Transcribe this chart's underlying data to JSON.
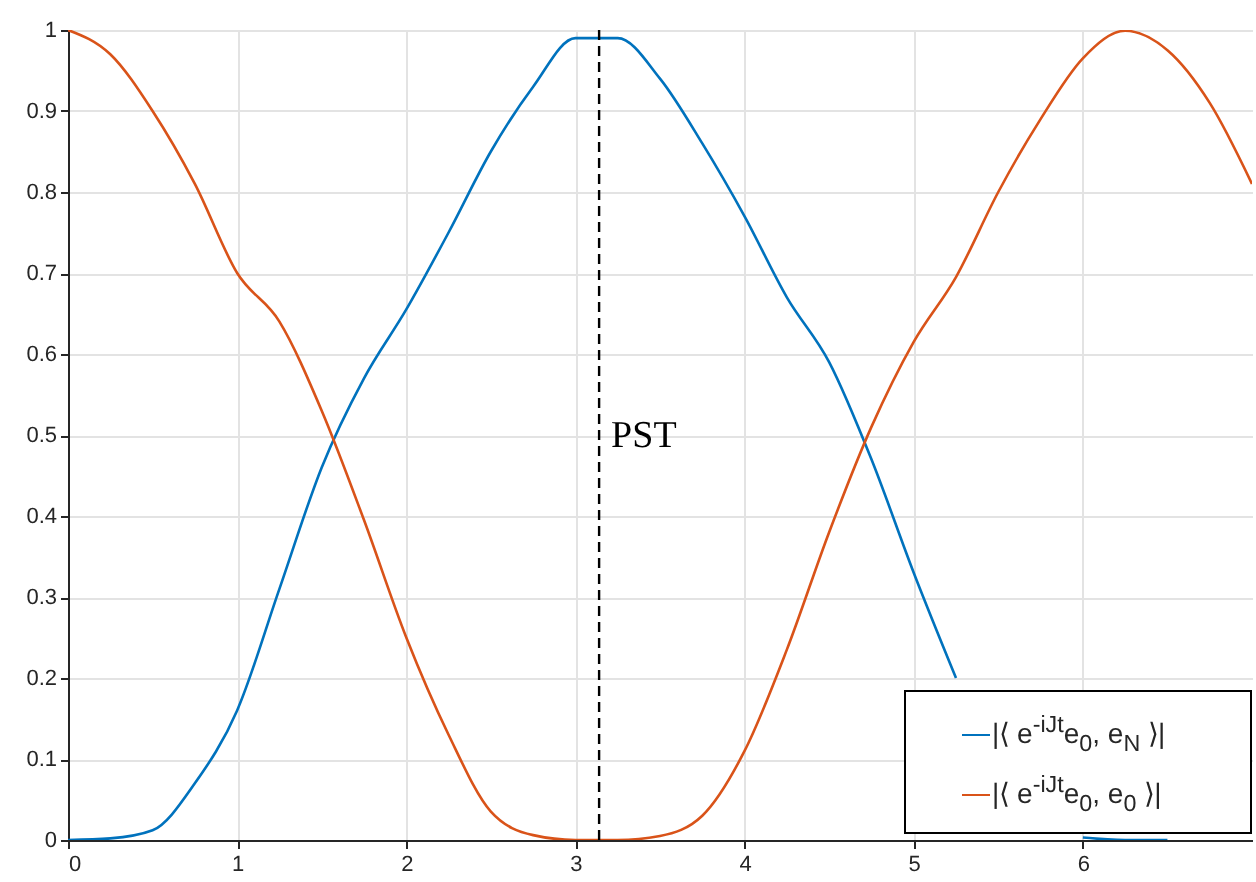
{
  "chart_data": {
    "type": "line",
    "x": [
      0,
      0.25,
      0.5,
      0.75,
      1,
      1.25,
      1.5,
      1.75,
      2,
      2.25,
      2.5,
      2.75,
      3,
      3.25,
      3.5,
      3.75,
      4,
      4.25,
      4.5,
      4.75,
      5,
      5.25,
      5.5,
      5.75,
      6,
      6.25,
      6.5,
      6.75,
      7
    ],
    "series": [
      {
        "name": "|⟨ e$^{-iJt}$e$_{0}$, e$_{N}$ ⟩|",
        "color": "#0072bd",
        "values": [
          0,
          0.002,
          0.012,
          0.07,
          0.16,
          0.31,
          0.46,
          0.57,
          0.655,
          0.75,
          0.85,
          0.93,
          0.99,
          0.99,
          0.94,
          0.86,
          0.77,
          0.67,
          0.59,
          0.47,
          0.33,
          0.2,
          null,
          null,
          0.003,
          0,
          0,
          null,
          null
        ]
      },
      {
        "name": "|⟨ e$^{-iJt}$e$_{0}$, e$_{0}$ ⟩|",
        "color": "#d95319",
        "values": [
          1,
          0.97,
          0.9,
          0.81,
          0.7,
          0.64,
          0.53,
          0.395,
          0.25,
          0.13,
          0.035,
          0.006,
          0,
          0,
          0.005,
          0.03,
          0.11,
          0.235,
          0.38,
          0.51,
          0.615,
          0.695,
          0.8,
          0.89,
          0.965,
          0.999,
          0.975,
          0.91,
          0.81
        ]
      }
    ],
    "xlim": [
      0,
      7
    ],
    "xticks": [
      0,
      1,
      2,
      3,
      4,
      5,
      6
    ],
    "ylim": [
      0,
      1
    ],
    "yticks": [
      0,
      0.1,
      0.2,
      0.3,
      0.4,
      0.5,
      0.6,
      0.7,
      0.8,
      0.9,
      1
    ],
    "ref_lines": [
      {
        "axis": "x",
        "value": 3.14,
        "label": "PST",
        "line_style": "dashed",
        "color": "#000000"
      }
    ],
    "grid": true,
    "legend": "bottom right",
    "line_style": "solid",
    "marker": "none"
  }
}
